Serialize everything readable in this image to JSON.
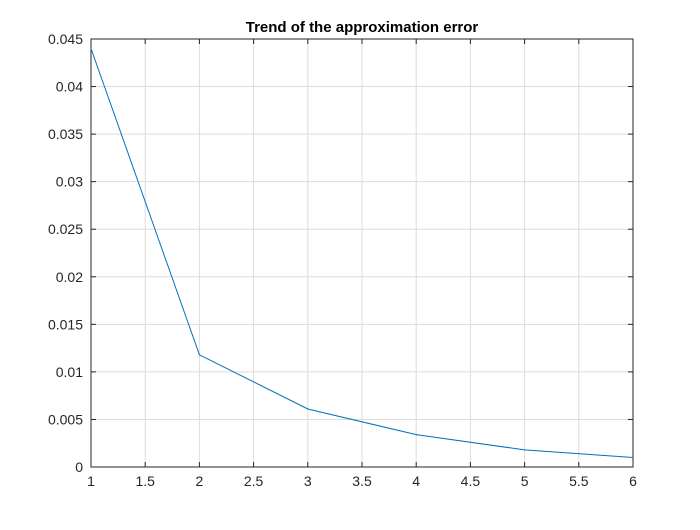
{
  "chart_data": {
    "type": "line",
    "title": "Trend of the approximation error",
    "xlabel": "",
    "ylabel": "",
    "xlim": [
      1,
      6
    ],
    "ylim": [
      0,
      0.045
    ],
    "xticks": [
      1,
      1.5,
      2,
      2.5,
      3,
      3.5,
      4,
      4.5,
      5,
      5.5,
      6
    ],
    "xtick_labels": [
      "1",
      "1.5",
      "2",
      "2.5",
      "3",
      "3.5",
      "4",
      "4.5",
      "5",
      "5.5",
      "6"
    ],
    "yticks": [
      0,
      0.005,
      0.01,
      0.015,
      0.02,
      0.025,
      0.03,
      0.035,
      0.04,
      0.045
    ],
    "ytick_labels": [
      "0",
      "0.005",
      "0.01",
      "0.015",
      "0.02",
      "0.025",
      "0.03",
      "0.035",
      "0.04",
      "0.045"
    ],
    "grid": true,
    "series": [
      {
        "x": [
          1,
          2,
          3,
          4,
          5,
          6
        ],
        "y": [
          0.044,
          0.0118,
          0.0061,
          0.0034,
          0.0018,
          0.001
        ],
        "color": "#0072BD"
      }
    ],
    "colors": {
      "axes": "#262626",
      "grid": "#dcdcdc",
      "line": "#0072BD"
    }
  }
}
